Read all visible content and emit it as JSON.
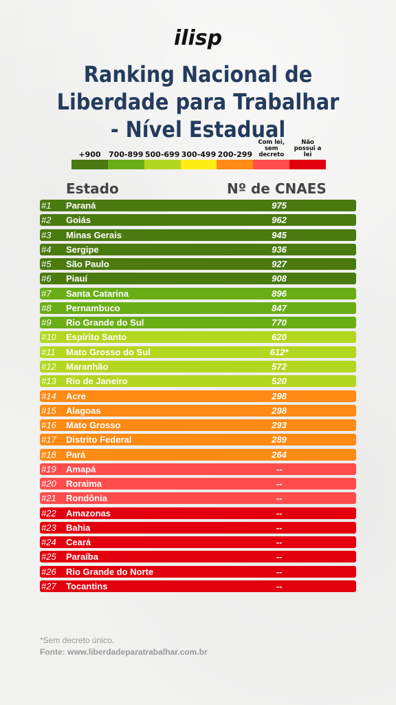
{
  "logo": "ilisp",
  "title_lines": [
    "Ranking Nacional de",
    "Liberdade para Trabalhar",
    "- Nível Estadual"
  ],
  "legend": [
    {
      "label": "+900",
      "color": "#4a7a10",
      "small": false
    },
    {
      "label": "700-899",
      "color": "#6aae16",
      "small": false
    },
    {
      "label": "500-699",
      "color": "#b3d71f",
      "small": false
    },
    {
      "label": "300-499",
      "color": "#ffee16",
      "small": false
    },
    {
      "label": "200-299",
      "color": "#ff8a14",
      "small": false
    },
    {
      "label": "Com lei, sem decreto",
      "color": "#ff4d4d",
      "small": true
    },
    {
      "label": "Não possui a lei",
      "color": "#e3000e",
      "small": true
    }
  ],
  "headers": {
    "state": "Estado",
    "value": "Nº de CNAES"
  },
  "chart_data": {
    "type": "table",
    "columns": [
      "Estado",
      "Nº de CNAES"
    ],
    "rows": [
      {
        "rank": "#1",
        "state": "Paraná",
        "value": "975",
        "color": "#4a7a10"
      },
      {
        "rank": "#2",
        "state": "Goiás",
        "value": "962",
        "color": "#4a7a10"
      },
      {
        "rank": "#3",
        "state": "Minas Gerais",
        "value": "945",
        "color": "#4a7a10"
      },
      {
        "rank": "#4",
        "state": "Sergipe",
        "value": "936",
        "color": "#4a7a10"
      },
      {
        "rank": "#5",
        "state": "São Paulo",
        "value": "927",
        "color": "#4a7a10"
      },
      {
        "rank": "#6",
        "state": "Piauí",
        "value": "908",
        "color": "#4a7a10"
      },
      {
        "rank": "#7",
        "state": "Santa Catarina",
        "value": "896",
        "color": "#6aae16"
      },
      {
        "rank": "#8",
        "state": "Pernambuco",
        "value": "847",
        "color": "#6aae16"
      },
      {
        "rank": "#9",
        "state": "Rio Grande do Sul",
        "value": "770",
        "color": "#6aae16"
      },
      {
        "rank": "#10",
        "state": "Espírito Santo",
        "value": "620",
        "color": "#b3d71f"
      },
      {
        "rank": "#11",
        "state": "Mato Grosso do Sul",
        "value": "612*",
        "color": "#b3d71f"
      },
      {
        "rank": "#12",
        "state": "Maranhão",
        "value": "572",
        "color": "#b3d71f"
      },
      {
        "rank": "#13",
        "state": "Rio de Janeiro",
        "value": "520",
        "color": "#b3d71f"
      },
      {
        "rank": "#14",
        "state": "Acre",
        "value": "298",
        "color": "#ff8a14"
      },
      {
        "rank": "#15",
        "state": "Alagoas",
        "value": "298",
        "color": "#ff8a14"
      },
      {
        "rank": "#16",
        "state": "Mato Grosso",
        "value": "293",
        "color": "#ff8a14"
      },
      {
        "rank": "#17",
        "state": "Distrito Federal",
        "value": "289",
        "color": "#ff8a14"
      },
      {
        "rank": "#18",
        "state": "Pará",
        "value": "264",
        "color": "#ff8a14"
      },
      {
        "rank": "#19",
        "state": "Amapá",
        "value": "--",
        "color": "#ff4d4d"
      },
      {
        "rank": "#20",
        "state": "Roraima",
        "value": "--",
        "color": "#ff4d4d"
      },
      {
        "rank": "#21",
        "state": "Rondônia",
        "value": "--",
        "color": "#ff4d4d"
      },
      {
        "rank": "#22",
        "state": "Amazonas",
        "value": "--",
        "color": "#e3000e"
      },
      {
        "rank": "#23",
        "state": "Bahia",
        "value": "--",
        "color": "#e3000e"
      },
      {
        "rank": "#24",
        "state": "Ceará",
        "value": "--",
        "color": "#e3000e"
      },
      {
        "rank": "#25",
        "state": "Paraíba",
        "value": "--",
        "color": "#e3000e"
      },
      {
        "rank": "#26",
        "state": "Rio Grande do Norte",
        "value": "--",
        "color": "#e3000e"
      },
      {
        "rank": "#27",
        "state": "Tocantins",
        "value": "--",
        "color": "#e3000e"
      }
    ]
  },
  "footnote": "*Sem decreto único.",
  "source": "Fonte: www.liberdadeparatrabalhar.com.br"
}
